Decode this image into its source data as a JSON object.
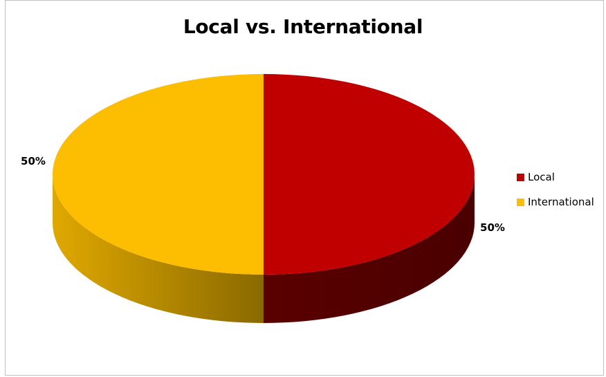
{
  "chart_data": {
    "type": "pie",
    "title": "Local vs. International",
    "categories": [
      "Local",
      "International"
    ],
    "values": [
      50,
      50
    ],
    "unit": "%",
    "data_labels": [
      "50%",
      "50%"
    ],
    "colors": [
      "#c00000",
      "#fdbd00"
    ],
    "side_colors": [
      "#6a0000",
      "#c98f00"
    ],
    "legend_position": "right",
    "three_d": true
  }
}
